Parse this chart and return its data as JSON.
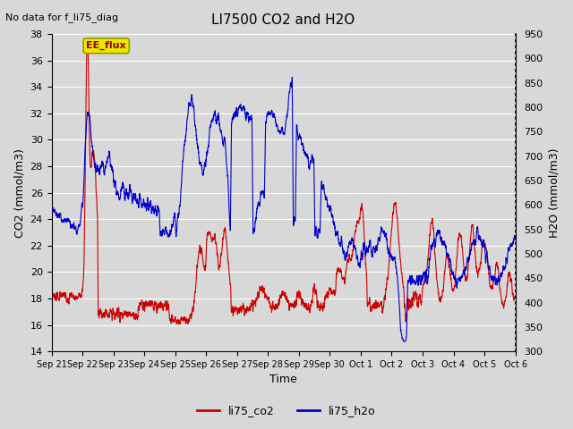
{
  "title": "LI7500 CO2 and H2O",
  "top_left_text": "No data for f_li75_diag",
  "xlabel": "Time",
  "ylabel_left": "CO2 (mmol/m3)",
  "ylabel_right": "H2O (mmol/m3)",
  "ylim_left": [
    14,
    38
  ],
  "ylim_right": [
    300,
    950
  ],
  "yticks_left": [
    14,
    16,
    18,
    20,
    22,
    24,
    26,
    28,
    30,
    32,
    34,
    36,
    38
  ],
  "yticks_right": [
    300,
    350,
    400,
    450,
    500,
    550,
    600,
    650,
    700,
    750,
    800,
    850,
    900,
    950
  ],
  "co2_color": "#cc0000",
  "h2o_color": "#0000cc",
  "bg_color": "#d8d8d8",
  "legend_label_co2": "li75_co2",
  "legend_label_h2o": "li75_h2o",
  "box_label": "EE_flux",
  "box_facecolor": "#e8e800",
  "box_edgecolor": "#999900",
  "box_text_color": "#990000",
  "line_width": 0.8,
  "xtick_labels": [
    "Sep 21",
    "Sep 22",
    "Sep 23",
    "Sep 24",
    "Sep 25",
    "Sep 26",
    "Sep 27",
    "Sep 28",
    "Sep 29",
    "Sep 30",
    "Oct 1",
    "Oct 2",
    "Oct 3",
    "Oct 4",
    "Oct 5",
    "Oct 6"
  ],
  "n_points": 4000,
  "grid_color": "#ffffff",
  "fig_bg": "#d8d8d8"
}
